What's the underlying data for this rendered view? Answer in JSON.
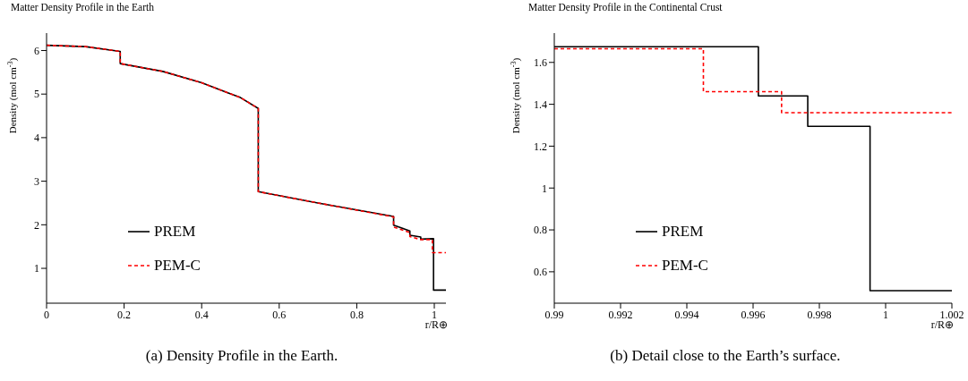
{
  "chart_data": [
    {
      "type": "line",
      "title": "Matter Density Profile in the Earth",
      "xlabel": "r/R⊕",
      "ylabel": "Density (mol cm$^{-3}$)",
      "series": [
        {
          "name": "PREM",
          "color": "#000000",
          "line_style": "solid",
          "x": [
            0,
            0.1,
            0.19,
            0.19,
            0.3,
            0.4,
            0.5,
            0.546,
            0.546,
            0.7,
            0.895,
            0.895,
            0.937,
            0.937,
            0.965,
            0.965,
            0.998,
            0.998,
            1.03
          ],
          "values": [
            6.12,
            6.09,
            5.98,
            5.7,
            5.52,
            5.26,
            4.92,
            4.67,
            2.76,
            2.5,
            2.19,
            1.99,
            1.86,
            1.76,
            1.72,
            1.67,
            1.68,
            0.5,
            0.5
          ]
        },
        {
          "name": "PEM-C",
          "color": "#ff0000",
          "line_style": "dashed",
          "x": [
            0,
            0.1,
            0.19,
            0.19,
            0.3,
            0.4,
            0.5,
            0.546,
            0.546,
            0.7,
            0.895,
            0.895,
            0.937,
            0.937,
            0.965,
            0.995,
            0.995,
            1.03
          ],
          "values": [
            6.12,
            6.09,
            5.98,
            5.7,
            5.52,
            5.26,
            4.92,
            4.67,
            2.76,
            2.5,
            2.18,
            1.95,
            1.82,
            1.73,
            1.66,
            1.66,
            1.36,
            1.36
          ]
        }
      ],
      "xlim": [
        0,
        1.03
      ],
      "xticks": [
        0,
        0.2,
        0.4,
        0.6,
        0.8,
        1
      ],
      "ylim": [
        0.2,
        6.4
      ],
      "yticks": [
        1,
        2,
        3,
        4,
        5,
        6
      ],
      "grid": false,
      "legend": "left",
      "annotations": [
        "(a) Density Profile in the Earth."
      ]
    },
    {
      "type": "step",
      "title": "Matter Density Profile in the Continental Crust",
      "xlabel": "r/R⊕",
      "ylabel": "Density (mol cm$^{-3}$)",
      "series": [
        {
          "name": "PREM",
          "color": "#000000",
          "line_style": "solid",
          "x": [
            0.99,
            0.99616,
            0.99765,
            0.99953,
            1.002
          ],
          "values": [
            1.675,
            1.44,
            1.295,
            0.51,
            0.51
          ]
        },
        {
          "name": "PEM-C",
          "color": "#ff0000",
          "line_style": "dashed",
          "x": [
            0.99,
            0.9945,
            0.99686,
            1.002
          ],
          "values": [
            1.665,
            1.46,
            1.36,
            1.36
          ]
        }
      ],
      "xlim": [
        0.99,
        1.002
      ],
      "xticks": [
        0.99,
        0.992,
        0.994,
        0.996,
        0.998,
        1,
        1.002
      ],
      "ylim": [
        0.45,
        1.74
      ],
      "yticks": [
        0.6,
        0.8,
        1,
        1.2,
        1.4,
        1.6
      ],
      "grid": false,
      "legend": "left",
      "annotations": [
        "(b) Detail close to the Earth’s surface."
      ]
    }
  ]
}
